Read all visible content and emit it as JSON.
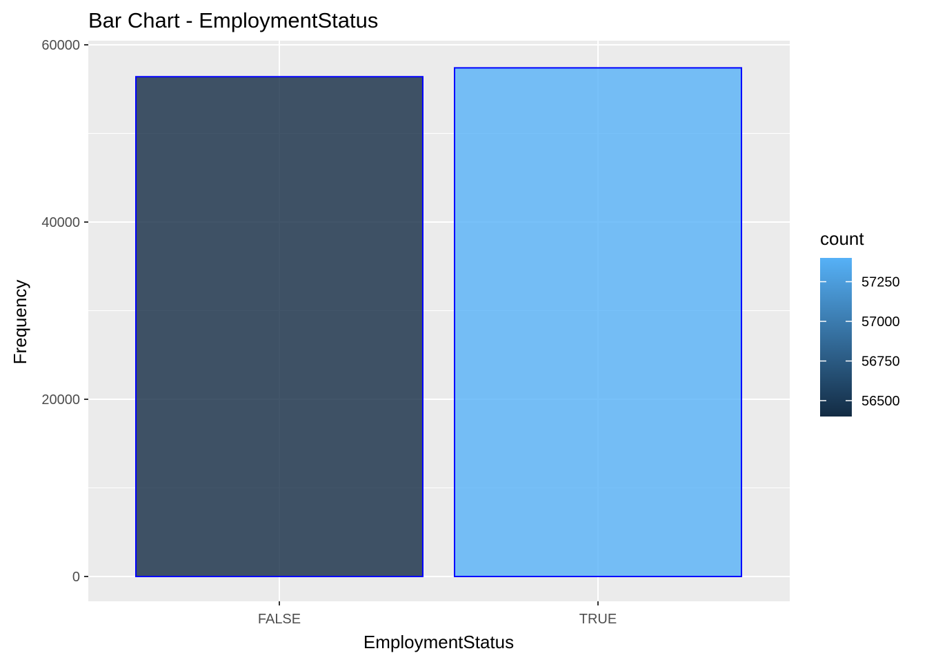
{
  "chart_data": {
    "type": "bar",
    "title": "Bar Chart - EmploymentStatus",
    "xlabel": "EmploymentStatus",
    "ylabel": "Frequency",
    "categories": [
      "FALSE",
      "TRUE"
    ],
    "values": [
      56400,
      57400
    ],
    "ylim": [
      0,
      60000
    ],
    "y_ticks": [
      0,
      20000,
      40000,
      60000
    ],
    "y_tick_labels": [
      "0",
      "20000",
      "40000",
      "60000"
    ],
    "grid": true,
    "bar_outline_color": "#0000ff",
    "panel_background": "#ebebeb",
    "legend": {
      "title": "count",
      "placement": "right",
      "type": "colorbar",
      "range": [
        56400,
        57400
      ],
      "ticks": [
        56500,
        56750,
        57000,
        57250
      ],
      "tick_labels": [
        "56500",
        "56750",
        "57000",
        "57250"
      ],
      "low_color": "#132b43",
      "high_color": "#56b1f7"
    }
  }
}
